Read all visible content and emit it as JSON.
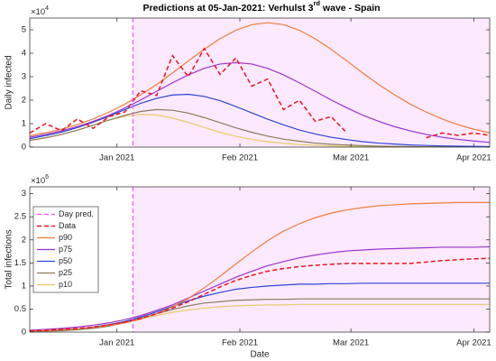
{
  "chart_data": [
    {
      "type": "line",
      "title": [
        "Predictions at 05-Jan-2021: Verhulst 3",
        "rd",
        " wave - Spain"
      ],
      "y_label": "Daily infected",
      "y_exponent": [
        "×10",
        "4"
      ],
      "xlim": [
        -22,
        94
      ],
      "ylim": [
        0,
        5.5
      ],
      "xticks": [
        {
          "value": 0,
          "label": "Jan 2021"
        },
        {
          "value": 31,
          "label": "Feb 2021"
        },
        {
          "value": 59,
          "label": "Mar 2021"
        },
        {
          "value": 90,
          "label": "Apr 2021"
        }
      ],
      "yticks": [
        0,
        1,
        2,
        3,
        4,
        5
      ],
      "grid": false,
      "shade_color": "#fde9fd",
      "vline": {
        "x": 4,
        "color": "#ff4dff"
      },
      "x": [
        -22,
        -18,
        -14,
        -10,
        -6,
        -2,
        2,
        6,
        10,
        14,
        18,
        22,
        26,
        30,
        34,
        38,
        42,
        46,
        50,
        54,
        58,
        62,
        66,
        70,
        74,
        78,
        82,
        86,
        90,
        94
      ],
      "series": [
        {
          "color": "#e8141e",
          "dashed": true,
          "values": [
            0.6,
            1.0,
            0.7,
            1.2,
            0.8,
            1.3,
            1.5,
            2.4,
            2.2,
            3.9,
            3.0,
            4.2,
            3.1,
            3.8,
            2.6,
            2.9,
            1.6,
            2.0,
            1.1,
            1.3,
            0.6,
            null,
            null,
            null,
            null,
            0.4,
            0.6,
            0.5,
            0.6,
            0.5
          ]
        },
        {
          "color": "#ee7d3a",
          "values": [
            0.48,
            0.61,
            0.76,
            0.96,
            1.2,
            1.49,
            1.83,
            2.23,
            2.67,
            3.16,
            3.67,
            4.17,
            4.62,
            4.98,
            5.22,
            5.3,
            5.22,
            4.98,
            4.62,
            4.17,
            3.67,
            3.16,
            2.67,
            2.23,
            1.83,
            1.49,
            1.2,
            0.96,
            0.76,
            0.61
          ]
        },
        {
          "color": "#9b33cc",
          "values": [
            0.42,
            0.54,
            0.69,
            0.87,
            1.1,
            1.36,
            1.67,
            2.01,
            2.38,
            2.74,
            3.08,
            3.36,
            3.54,
            3.6,
            3.54,
            3.36,
            3.08,
            2.74,
            2.38,
            2.01,
            1.67,
            1.36,
            1.1,
            0.87,
            0.69,
            0.54,
            0.42,
            0.33,
            0.26,
            0.2
          ]
        },
        {
          "color": "#2f45d4",
          "values": [
            0.36,
            0.49,
            0.64,
            0.83,
            1.06,
            1.32,
            1.6,
            1.87,
            2.08,
            2.22,
            2.25,
            2.16,
            1.98,
            1.73,
            1.46,
            1.19,
            0.95,
            0.73,
            0.56,
            0.42,
            0.32,
            0.23,
            0.17,
            0.13,
            0.09,
            0.07,
            0.05,
            0.04,
            0.03,
            0.02
          ]
        },
        {
          "color": "#8b7b5b",
          "values": [
            0.29,
            0.4,
            0.54,
            0.72,
            0.93,
            1.15,
            1.36,
            1.52,
            1.6,
            1.57,
            1.45,
            1.26,
            1.04,
            0.82,
            0.63,
            0.47,
            0.34,
            0.25,
            0.17,
            0.12,
            0.09,
            0.06,
            0.04,
            0.03,
            0.02,
            0.01,
            0.01,
            0.01,
            0.01,
            0.01
          ]
        },
        {
          "color": "#e5cc6b",
          "values": [
            0.28,
            0.39,
            0.54,
            0.73,
            0.94,
            1.15,
            1.31,
            1.4,
            1.37,
            1.24,
            1.05,
            0.84,
            0.63,
            0.46,
            0.33,
            0.23,
            0.16,
            0.11,
            0.08,
            0.05,
            0.03,
            0.02,
            0.01,
            0.01,
            0.01,
            0.01,
            0.01,
            0.01,
            0.01,
            0.01
          ]
        }
      ]
    },
    {
      "type": "line",
      "y_label": "Total infections",
      "x_label": "Date",
      "y_exponent": [
        "×10",
        "6"
      ],
      "xlim": [
        -22,
        94
      ],
      "ylim": [
        0,
        3.15
      ],
      "xticks": [
        {
          "value": 0,
          "label": "Jan 2021"
        },
        {
          "value": 31,
          "label": "Feb 2021"
        },
        {
          "value": 59,
          "label": "Mar 2021"
        },
        {
          "value": 90,
          "label": "Apr 2021"
        }
      ],
      "yticks": [
        0,
        0.5,
        1,
        1.5,
        2,
        2.5,
        3
      ],
      "grid": false,
      "legend": "upper left",
      "shade_color": "#fde9fd",
      "vline": {
        "name": "Day pred.",
        "x": 4,
        "color": "#ff4dff"
      },
      "x": [
        -22,
        -18,
        -14,
        -10,
        -6,
        -2,
        2,
        6,
        10,
        14,
        18,
        22,
        26,
        30,
        34,
        38,
        42,
        46,
        50,
        54,
        58,
        62,
        66,
        70,
        74,
        78,
        82,
        86,
        90,
        94
      ],
      "series": [
        {
          "name": "Data",
          "color": "#e8141e",
          "dashed": true,
          "values": [
            0.03,
            0.04,
            0.06,
            0.08,
            0.11,
            0.16,
            0.22,
            0.3,
            0.4,
            0.52,
            0.66,
            0.82,
            0.98,
            1.12,
            1.23,
            1.32,
            1.38,
            1.42,
            1.45,
            1.47,
            1.49,
            1.49,
            1.49,
            1.49,
            1.49,
            1.52,
            1.55,
            1.57,
            1.59,
            1.6
          ]
        },
        {
          "name": "p90",
          "color": "#ee7d3a",
          "values": [
            0.02,
            0.03,
            0.05,
            0.07,
            0.1,
            0.14,
            0.2,
            0.28,
            0.4,
            0.55,
            0.73,
            0.96,
            1.21,
            1.48,
            1.74,
            1.98,
            2.19,
            2.35,
            2.48,
            2.58,
            2.65,
            2.7,
            2.74,
            2.76,
            2.78,
            2.79,
            2.8,
            2.81,
            2.81,
            2.81
          ]
        },
        {
          "name": "p75",
          "color": "#9b33cc",
          "values": [
            0.04,
            0.06,
            0.08,
            0.11,
            0.15,
            0.2,
            0.27,
            0.36,
            0.47,
            0.59,
            0.74,
            0.89,
            1.04,
            1.19,
            1.32,
            1.44,
            1.53,
            1.61,
            1.67,
            1.72,
            1.76,
            1.78,
            1.8,
            1.81,
            1.82,
            1.83,
            1.84,
            1.84,
            1.84,
            1.85
          ]
        },
        {
          "name": "p50",
          "color": "#2f45d4",
          "values": [
            0.02,
            0.03,
            0.05,
            0.07,
            0.11,
            0.16,
            0.23,
            0.33,
            0.44,
            0.56,
            0.68,
            0.78,
            0.86,
            0.93,
            0.97,
            1.0,
            1.02,
            1.04,
            1.04,
            1.05,
            1.05,
            1.06,
            1.06,
            1.06,
            1.06,
            1.06,
            1.06,
            1.06,
            1.06,
            1.06
          ]
        },
        {
          "name": "p25",
          "color": "#8b7b5b",
          "values": [
            0.01,
            0.02,
            0.03,
            0.05,
            0.08,
            0.13,
            0.21,
            0.3,
            0.4,
            0.49,
            0.57,
            0.63,
            0.66,
            0.69,
            0.7,
            0.71,
            0.71,
            0.72,
            0.72,
            0.72,
            0.72,
            0.72,
            0.72,
            0.72,
            0.72,
            0.72,
            0.72,
            0.72,
            0.72,
            0.72
          ]
        },
        {
          "name": "p10",
          "color": "#e5cc6b",
          "values": [
            0.02,
            0.03,
            0.05,
            0.07,
            0.11,
            0.16,
            0.22,
            0.29,
            0.36,
            0.43,
            0.48,
            0.52,
            0.55,
            0.57,
            0.58,
            0.59,
            0.59,
            0.6,
            0.6,
            0.6,
            0.6,
            0.6,
            0.6,
            0.6,
            0.6,
            0.6,
            0.6,
            0.6,
            0.6,
            0.6
          ]
        }
      ]
    }
  ]
}
